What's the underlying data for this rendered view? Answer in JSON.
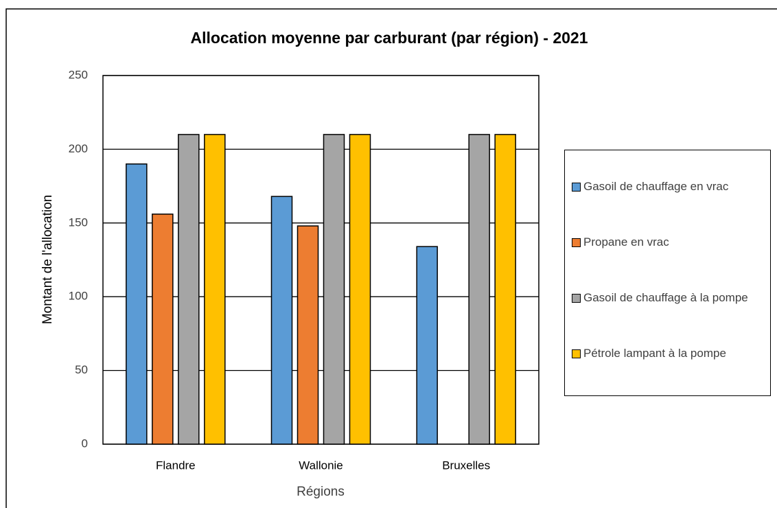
{
  "chart_data": {
    "type": "bar",
    "title": "Allocation moyenne par carburant (par région) - 2021",
    "x_label": "Régions",
    "y_label": "Montant de l'allocation",
    "categories": [
      "Flandre",
      "Wallonie",
      "Bruxelles"
    ],
    "series": [
      {
        "name": "Gasoil de chauffage en vrac",
        "color": "#5b9bd5",
        "values": [
          190,
          168,
          134
        ]
      },
      {
        "name": "Propane en vrac",
        "color": "#ed7d31",
        "values": [
          156,
          148,
          null
        ]
      },
      {
        "name": "Gasoil de chauffage à la pompe",
        "color": "#a5a5a5",
        "values": [
          210,
          210,
          210
        ]
      },
      {
        "name": "Pétrole lampant à la pompe",
        "color": "#ffc000",
        "values": [
          210,
          210,
          210
        ]
      }
    ],
    "ylim": [
      0,
      250
    ],
    "yticks": [
      0,
      50,
      100,
      150,
      200,
      250
    ],
    "grid": true,
    "legend": "right"
  }
}
